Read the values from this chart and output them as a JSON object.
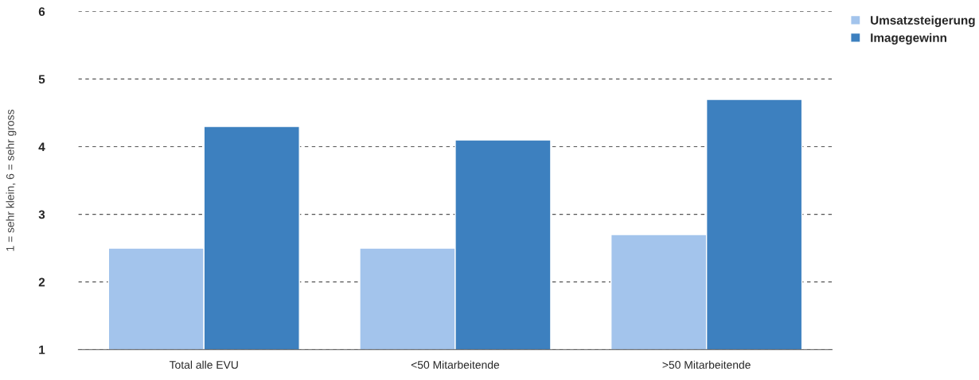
{
  "chart_data": {
    "type": "bar",
    "ylabel": "1 = sehr klein, 6 = sehr gross",
    "categories": [
      "Total alle EVU",
      "<50 Mitarbeitende",
      ">50 Mitarbeitende"
    ],
    "series": [
      {
        "name": "Umsatzsteigerung",
        "color": "#a3c4ec",
        "values": [
          2.5,
          2.5,
          2.7
        ]
      },
      {
        "name": "Imagegewinn",
        "color": "#3d80bf",
        "values": [
          4.3,
          4.1,
          4.7
        ]
      }
    ],
    "ylim": [
      1,
      6
    ],
    "yticks": [
      1,
      2,
      3,
      4,
      5,
      6
    ],
    "grid": "y",
    "legend": "top right"
  }
}
